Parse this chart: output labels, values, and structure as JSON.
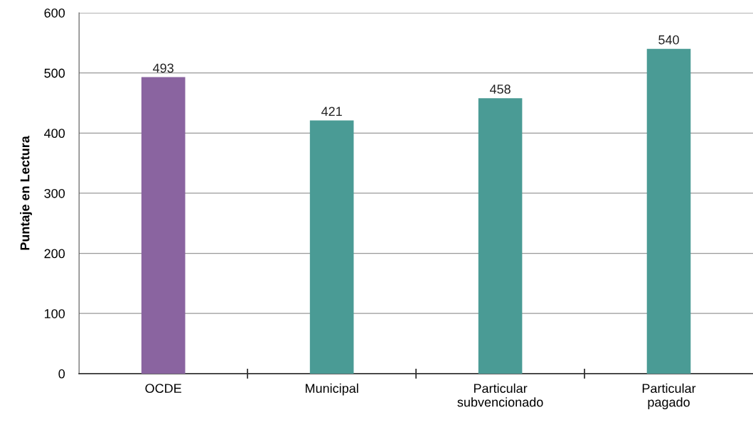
{
  "chart_data": {
    "type": "bar",
    "ylabel": "Puntaje en Lectura",
    "categories": [
      "OCDE",
      "Municipal",
      "Particular\nsubvencionado",
      "Particular\npagado"
    ],
    "values": [
      493,
      421,
      458,
      540
    ],
    "colors": [
      "#8a64a0",
      "#4a9b95",
      "#4a9b95",
      "#4a9b95"
    ],
    "ylim": [
      0,
      600
    ],
    "yticks": [
      0,
      100,
      200,
      300,
      400,
      500,
      600
    ],
    "grid": "y",
    "data_labels": true
  }
}
